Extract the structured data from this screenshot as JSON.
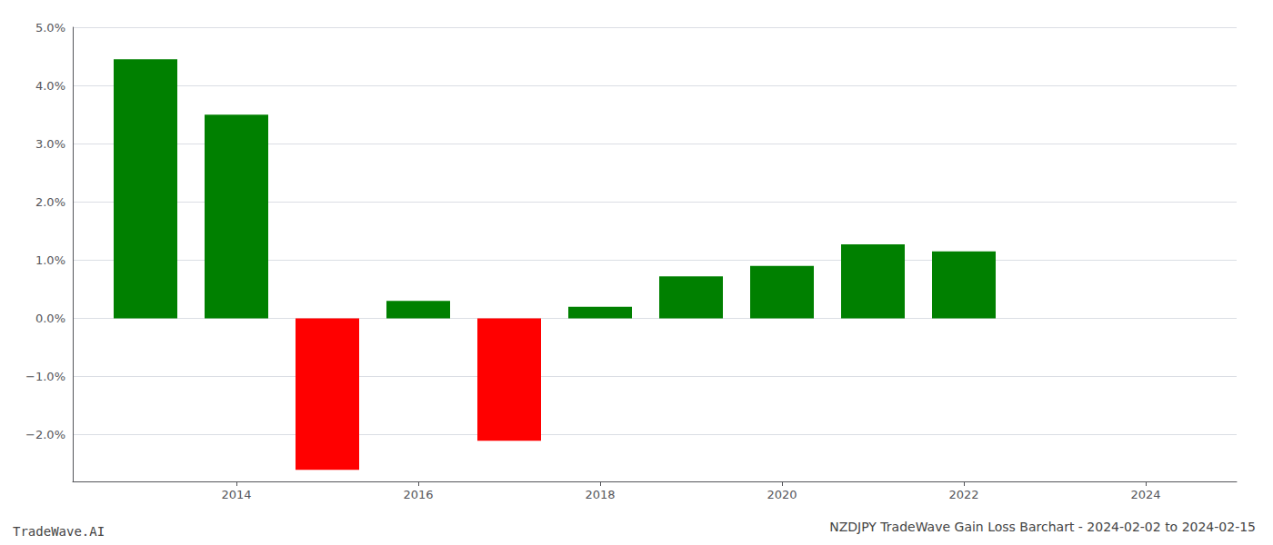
{
  "chart_data": {
    "type": "bar",
    "title": "NZDJPY TradeWave Gain Loss Barchart - 2024-02-02 to 2024-02-15",
    "annotations": [
      "TradeWave.AI"
    ],
    "x": [
      2013,
      2014,
      2015,
      2016,
      2017,
      2018,
      2019,
      2020,
      2021,
      2022
    ],
    "values": [
      0.0445,
      0.035,
      -0.026,
      0.003,
      -0.021,
      0.002,
      0.0072,
      0.009,
      0.0127,
      0.0115
    ],
    "colors": [
      "#008000",
      "#008000",
      "#ff0000",
      "#008000",
      "#ff0000",
      "#008000",
      "#008000",
      "#008000",
      "#008000",
      "#008000"
    ],
    "xlim": [
      2012.2,
      2025.0
    ],
    "xticks": [
      2014,
      2016,
      2018,
      2020,
      2022,
      2024
    ],
    "ylim": [
      -0.028,
      0.05
    ],
    "yticks": [
      {
        "value": -0.02,
        "label": "−2.0%"
      },
      {
        "value": -0.01,
        "label": "−1.0%"
      },
      {
        "value": 0,
        "label": "0.0%"
      },
      {
        "value": 0.01,
        "label": "1.0%"
      },
      {
        "value": 0.02,
        "label": "2.0%"
      },
      {
        "value": 0.03,
        "label": "3.0%"
      },
      {
        "value": 0.04,
        "label": "4.0%"
      },
      {
        "value": 0.05,
        "label": "5.0%"
      }
    ],
    "grid": true
  }
}
